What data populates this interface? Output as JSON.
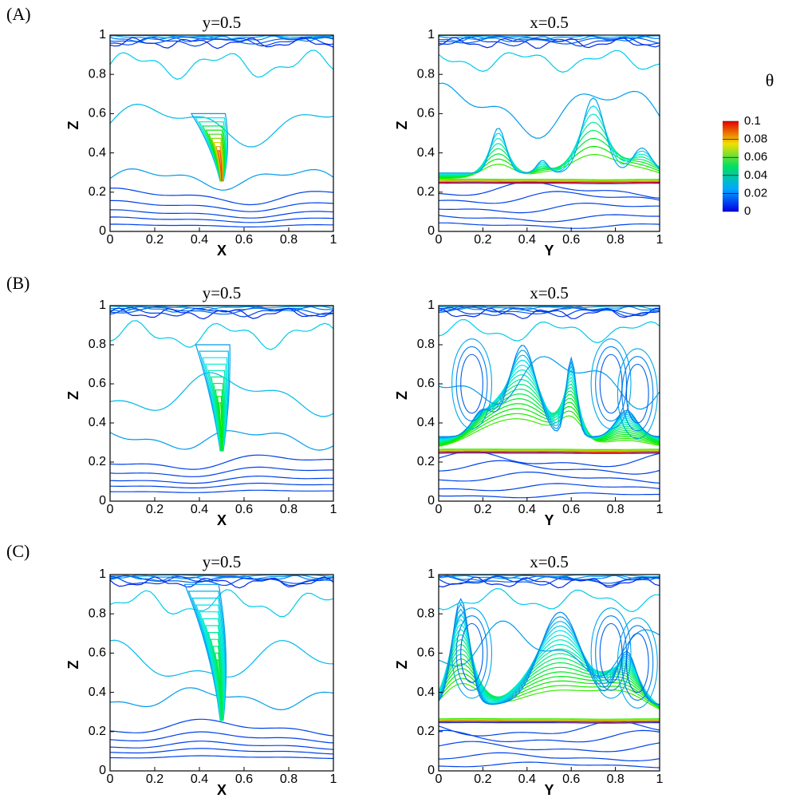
{
  "panel_labels": [
    "(A)",
    "(B)",
    "(C)"
  ],
  "colorbar": {
    "title": "θ",
    "lim": [
      0,
      0.1
    ],
    "ticks": [
      0,
      0.02,
      0.04,
      0.06,
      0.08,
      0.1
    ]
  },
  "chart_data": [
    {
      "type": "contour",
      "title": "y=0.5",
      "xlabel": "X",
      "ylabel": "Z",
      "xlim": [
        0,
        1
      ],
      "ylim": [
        0,
        1
      ],
      "xticks": [
        0,
        0.2,
        0.4,
        0.6,
        0.8,
        1
      ],
      "yticks": [
        0,
        0.2,
        0.4,
        0.6,
        0.8,
        1
      ]
    },
    {
      "type": "contour",
      "title": "x=0.5",
      "xlabel": "Y",
      "ylabel": "Z",
      "xlim": [
        0,
        1
      ],
      "ylim": [
        0,
        1
      ],
      "xticks": [
        0,
        0.2,
        0.4,
        0.6,
        0.8,
        1
      ],
      "yticks": [
        0,
        0.2,
        0.4,
        0.6,
        0.8,
        1
      ]
    },
    {
      "type": "contour",
      "title": "y=0.5",
      "xlabel": "X",
      "ylabel": "Z",
      "xlim": [
        0,
        1
      ],
      "ylim": [
        0,
        1
      ],
      "xticks": [
        0,
        0.2,
        0.4,
        0.6,
        0.8,
        1
      ],
      "yticks": [
        0,
        0.2,
        0.4,
        0.6,
        0.8,
        1
      ]
    },
    {
      "type": "contour",
      "title": "x=0.5",
      "xlabel": "Y",
      "ylabel": "Z",
      "xlim": [
        0,
        1
      ],
      "ylim": [
        0,
        1
      ],
      "xticks": [
        0,
        0.2,
        0.4,
        0.6,
        0.8,
        1
      ],
      "yticks": [
        0,
        0.2,
        0.4,
        0.6,
        0.8,
        1
      ]
    },
    {
      "type": "contour",
      "title": "y=0.5",
      "xlabel": "X",
      "ylabel": "Z",
      "xlim": [
        0,
        1
      ],
      "ylim": [
        0,
        1
      ],
      "xticks": [
        0,
        0.2,
        0.4,
        0.6,
        0.8,
        1
      ],
      "yticks": [
        0,
        0.2,
        0.4,
        0.6,
        0.8,
        1
      ]
    },
    {
      "type": "contour",
      "title": "x=0.5",
      "xlabel": "Y",
      "ylabel": "Z",
      "xlim": [
        0,
        1
      ],
      "ylim": [
        0,
        1
      ],
      "xticks": [
        0,
        0.2,
        0.4,
        0.6,
        0.8,
        1
      ],
      "yticks": [
        0,
        0.2,
        0.4,
        0.6,
        0.8,
        1
      ]
    }
  ]
}
